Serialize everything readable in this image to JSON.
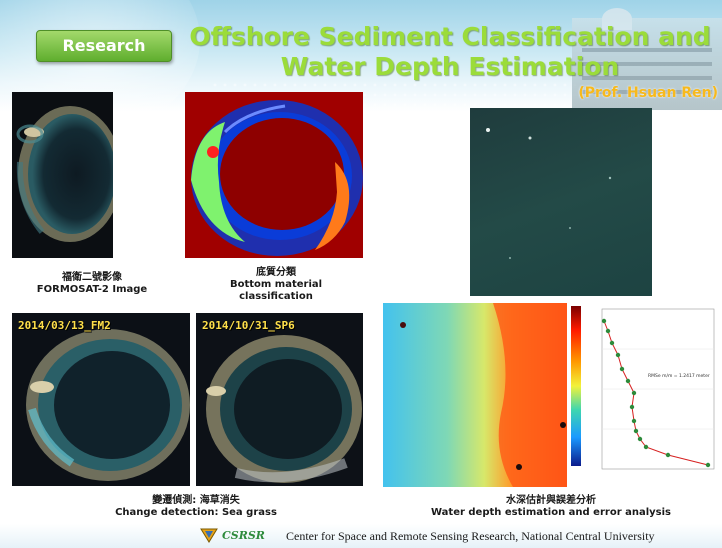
{
  "header": {
    "tab_label": "Research",
    "title_line1": "Offshore Sediment Classification and",
    "title_line2": "Water Depth Estimation",
    "author": "(Prof. Hsuan Ren)"
  },
  "panels": {
    "formosat": {
      "caption_zh": "福衛二號影像",
      "caption_en": "FORMOSAT-2 Image"
    },
    "bottom": {
      "caption_zh": "底質分類",
      "caption_en_1": "Bottom material",
      "caption_en_2": "classification"
    },
    "change": {
      "date_left": "2014/03/13_FM2",
      "date_right": "2014/10/31_SP6",
      "caption_zh": "變遷偵測: 海草消失",
      "caption_en": "Change detection: Sea grass"
    },
    "depth": {
      "caption_zh": "水深估計與誤差分析",
      "caption_en": "Water depth estimation and error analysis",
      "rmse_label": "RMSe m/m = 1.2417 meter"
    }
  },
  "footer": {
    "brand": "CSRSR",
    "text": "Center for Space and Remote Sensing Research, National Central University"
  },
  "colors": {
    "title_green": "#9bdc3a",
    "author_gold": "#f7b91c",
    "tab_green": "#5fae2e"
  }
}
